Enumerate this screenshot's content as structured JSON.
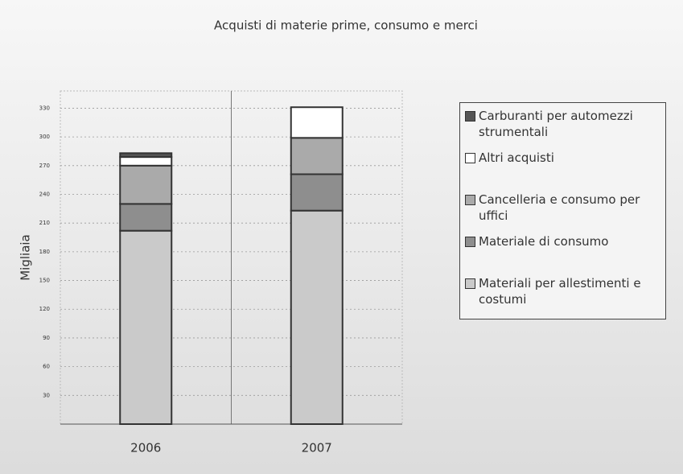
{
  "chart_data": {
    "type": "stacked_bar",
    "title": "Acquisti di materie prime, consumo e merci",
    "y_label": "Migliaia",
    "categories": [
      "2006",
      "2007"
    ],
    "series": [
      {
        "name": "Materiali per allestimenti e costumi",
        "color": "#cacaca",
        "values": [
          202,
          223
        ]
      },
      {
        "name": "Materiale di consumo",
        "color": "#8e8e8e",
        "values": [
          28,
          38
        ]
      },
      {
        "name": "Cancelleria e consumo per uffici",
        "color": "#aaaaaa",
        "values": [
          40,
          38
        ]
      },
      {
        "name": "Altri acquisti",
        "color": "#ffffff",
        "values": [
          9,
          32
        ]
      },
      {
        "name": "Carburanti per automezzi strumentali",
        "color": "#555555",
        "values": [
          4,
          0
        ]
      }
    ],
    "ylim": [
      0,
      348
    ],
    "yticks": [
      30,
      60,
      90,
      120,
      150,
      180,
      210,
      240,
      270,
      300,
      330
    ],
    "grid": true
  }
}
